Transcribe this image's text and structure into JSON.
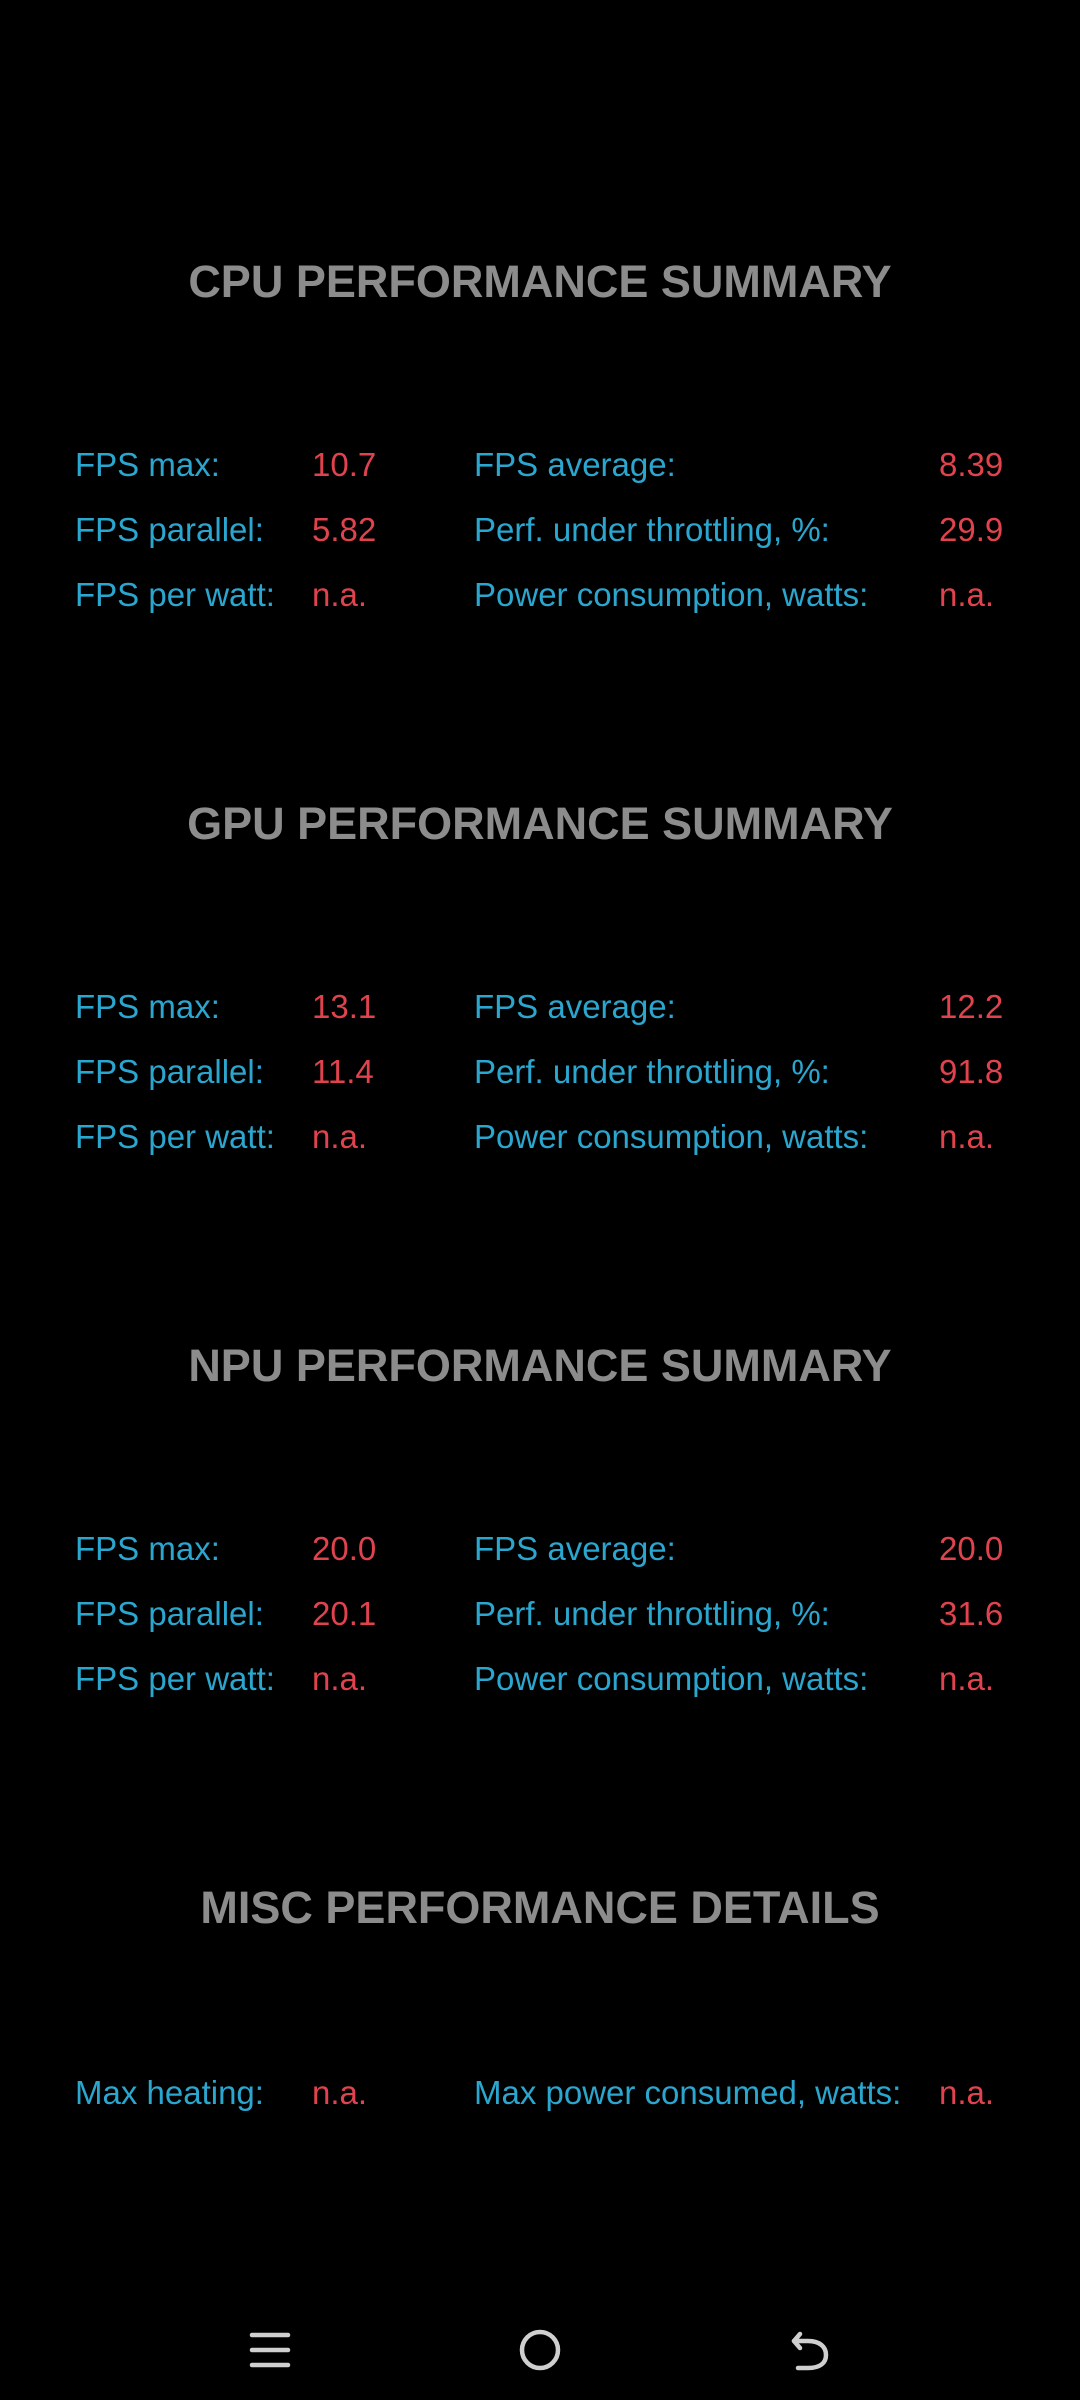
{
  "sections": [
    {
      "title": "CPU PERFORMANCE SUMMARY",
      "rows": [
        {
          "l1": "FPS max:",
          "v1": "10.7",
          "l2": "FPS average:",
          "v2": "8.39"
        },
        {
          "l1": "FPS parallel:",
          "v1": "5.82",
          "l2": "Perf. under throttling, %:",
          "v2": "29.9"
        },
        {
          "l1": "FPS per watt:",
          "v1": "n.a.",
          "l2": "Power consumption, watts:",
          "v2": "n.a."
        }
      ]
    },
    {
      "title": "GPU PERFORMANCE SUMMARY",
      "rows": [
        {
          "l1": "FPS max:",
          "v1": "13.1",
          "l2": "FPS average:",
          "v2": "12.2"
        },
        {
          "l1": "FPS parallel:",
          "v1": "11.4",
          "l2": "Perf. under throttling, %:",
          "v2": "91.8"
        },
        {
          "l1": "FPS per watt:",
          "v1": "n.a.",
          "l2": "Power consumption, watts:",
          "v2": "n.a."
        }
      ]
    },
    {
      "title": "NPU PERFORMANCE SUMMARY",
      "rows": [
        {
          "l1": "FPS max:",
          "v1": "20.0",
          "l2": "FPS average:",
          "v2": "20.0"
        },
        {
          "l1": "FPS parallel:",
          "v1": "20.1",
          "l2": "Perf. under throttling, %:",
          "v2": "31.6"
        },
        {
          "l1": "FPS per watt:",
          "v1": "n.a.",
          "l2": "Power consumption, watts:",
          "v2": "n.a."
        }
      ]
    },
    {
      "title": "MISC PERFORMANCE DETAILS",
      "rows": [
        {
          "l1": "Max heating:",
          "v1": "n.a.",
          "l2": "Max power consumed, watts:",
          "v2": "n.a."
        }
      ]
    }
  ],
  "navbar": {
    "icons": [
      "menu-icon",
      "home-icon",
      "back-icon"
    ]
  },
  "colors": {
    "background": "#000000",
    "title": "#8c8c8c",
    "label": "#2aa6cf",
    "value": "#e0434d",
    "nav_icon": "#cfcfcf"
  }
}
